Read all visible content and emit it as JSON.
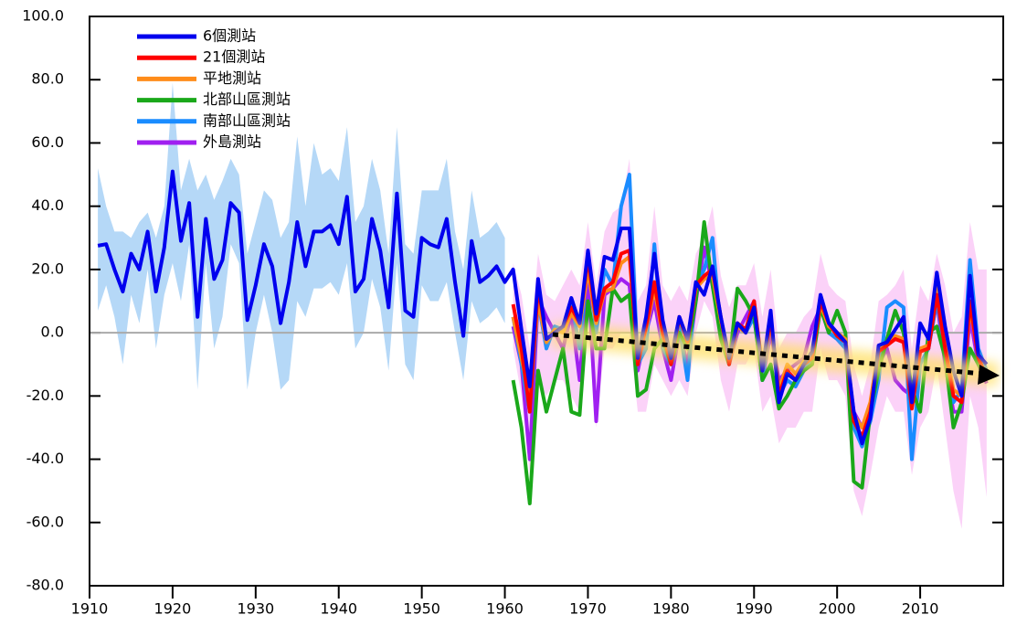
{
  "chart_data": {
    "type": "line",
    "x": [
      1911,
      1912,
      1913,
      1914,
      1915,
      1916,
      1917,
      1918,
      1919,
      1920,
      1921,
      1922,
      1923,
      1924,
      1925,
      1926,
      1927,
      1928,
      1929,
      1930,
      1931,
      1932,
      1933,
      1934,
      1935,
      1936,
      1937,
      1938,
      1939,
      1940,
      1941,
      1942,
      1943,
      1944,
      1945,
      1946,
      1947,
      1948,
      1949,
      1950,
      1951,
      1952,
      1953,
      1954,
      1955,
      1956,
      1957,
      1958,
      1959,
      1960,
      1961,
      1962,
      1963,
      1964,
      1965,
      1966,
      1967,
      1968,
      1969,
      1970,
      1971,
      1972,
      1973,
      1974,
      1975,
      1976,
      1977,
      1978,
      1979,
      1980,
      1981,
      1982,
      1983,
      1984,
      1985,
      1986,
      1987,
      1988,
      1989,
      1990,
      1991,
      1992,
      1993,
      1994,
      1995,
      1996,
      1997,
      1998,
      1999,
      2000,
      2001,
      2002,
      2003,
      2004,
      2005,
      2006,
      2007,
      2008,
      2009,
      2010,
      2011,
      2012,
      2013,
      2014,
      2015,
      2016,
      2017,
      2018
    ],
    "xlim": [
      1910,
      2020
    ],
    "xticks": [
      1910,
      1920,
      1930,
      1940,
      1950,
      1960,
      1970,
      1980,
      1990,
      2000,
      2010
    ],
    "ylim": [
      -80,
      100
    ],
    "yticks": [
      {
        "value": -80,
        "label": "-80.0"
      },
      {
        "value": -60,
        "label": "-60.0"
      },
      {
        "value": -40,
        "label": "-40.0"
      },
      {
        "value": -20,
        "label": "-20.0"
      },
      {
        "value": 0,
        "label": "0.0"
      },
      {
        "value": 20,
        "label": "20.0"
      },
      {
        "value": 40,
        "label": "40.0"
      },
      {
        "value": 60,
        "label": "60.0"
      },
      {
        "value": 80,
        "label": "80.0"
      },
      {
        "value": 100,
        "label": "100.0"
      }
    ],
    "legend": "upper left",
    "bands": [
      {
        "color": "#b5d8f7",
        "upper": [
          52,
          40,
          32,
          32,
          30,
          35,
          38,
          30,
          40,
          79,
          45,
          55,
          45,
          50,
          42,
          48,
          55,
          50,
          25,
          35,
          45,
          42,
          30,
          35,
          62,
          40,
          60,
          50,
          52,
          48,
          65,
          35,
          40,
          55,
          45,
          25,
          65,
          28,
          25,
          45,
          45,
          45,
          55,
          32,
          20,
          45,
          30,
          32,
          35,
          30,
          null,
          null,
          null,
          null,
          null,
          null,
          null,
          null,
          null,
          null,
          null,
          null,
          null,
          null,
          null,
          null,
          null,
          null,
          null,
          null,
          null,
          null,
          null,
          null,
          null,
          null,
          null,
          null,
          null,
          null,
          null,
          null,
          null,
          null,
          null,
          null,
          null,
          null,
          null,
          null,
          null,
          null,
          null,
          null,
          null,
          null,
          null,
          null,
          null,
          null,
          null,
          null,
          null,
          null,
          null,
          null,
          null,
          null
        ],
        "lower": [
          7,
          15,
          5,
          -10,
          12,
          3,
          20,
          -5,
          12,
          22,
          10,
          28,
          -18,
          22,
          -5,
          5,
          28,
          22,
          -18,
          0,
          12,
          0,
          -18,
          -15,
          10,
          5,
          14,
          14,
          16,
          12,
          22,
          -5,
          0,
          17,
          8,
          -12,
          22,
          -10,
          -15,
          15,
          10,
          10,
          16,
          0,
          -15,
          10,
          3,
          5,
          8,
          3,
          null,
          null,
          null,
          null,
          null,
          null,
          null,
          null,
          null,
          null,
          null,
          null,
          null,
          null,
          null,
          null,
          null,
          null,
          null,
          null,
          null,
          null,
          null,
          null,
          null,
          null,
          null,
          null,
          null,
          null,
          null,
          null,
          null,
          null,
          null,
          null,
          null,
          null,
          null,
          null,
          null,
          null,
          null,
          null,
          null,
          null,
          null,
          null,
          null,
          null,
          null,
          null,
          null,
          null,
          null,
          null,
          null,
          null
        ]
      },
      {
        "color": "#fbd2f8",
        "upper": [
          null,
          null,
          null,
          null,
          null,
          null,
          null,
          null,
          null,
          null,
          null,
          null,
          null,
          null,
          null,
          null,
          null,
          null,
          null,
          null,
          null,
          null,
          null,
          null,
          null,
          null,
          null,
          null,
          null,
          null,
          null,
          null,
          null,
          null,
          null,
          null,
          null,
          null,
          null,
          null,
          null,
          null,
          null,
          null,
          null,
          null,
          null,
          null,
          null,
          null,
          22,
          12,
          -5,
          25,
          12,
          10,
          15,
          20,
          15,
          35,
          15,
          32,
          38,
          40,
          55,
          10,
          15,
          40,
          15,
          10,
          15,
          10,
          25,
          30,
          40,
          18,
          8,
          15,
          15,
          22,
          5,
          20,
          -5,
          0,
          0,
          5,
          8,
          25,
          15,
          12,
          10,
          -10,
          -20,
          -10,
          10,
          12,
          15,
          20,
          -5,
          15,
          10,
          25,
          15,
          0,
          5,
          35,
          20,
          20
        ],
        "lower": [
          null,
          null,
          null,
          null,
          null,
          null,
          null,
          null,
          null,
          null,
          null,
          null,
          null,
          null,
          null,
          null,
          null,
          null,
          null,
          null,
          null,
          null,
          null,
          null,
          null,
          null,
          null,
          null,
          null,
          null,
          null,
          null,
          null,
          null,
          null,
          null,
          null,
          null,
          null,
          null,
          null,
          null,
          null,
          null,
          null,
          null,
          null,
          null,
          null,
          null,
          -5,
          -20,
          -45,
          -15,
          -20,
          -15,
          -15,
          -20,
          -25,
          10,
          -30,
          -5,
          -5,
          0,
          0,
          -25,
          -25,
          -10,
          -15,
          -20,
          -15,
          -20,
          0,
          10,
          5,
          -15,
          -25,
          -10,
          -10,
          -5,
          -25,
          -20,
          -35,
          -30,
          -30,
          -25,
          -25,
          -5,
          -15,
          -15,
          -20,
          -50,
          -58,
          -45,
          -30,
          -20,
          -25,
          -25,
          -45,
          -30,
          -25,
          -10,
          -30,
          -50,
          -62,
          -20,
          -30,
          -52
        ]
      }
    ],
    "series": [
      {
        "name": "6個測站",
        "color": "#0000ee",
        "values": [
          27.5,
          28,
          20,
          13,
          25,
          20,
          32,
          13,
          27,
          51,
          29,
          41,
          5,
          36,
          17,
          23,
          41,
          38,
          4,
          15,
          28,
          21,
          3,
          16,
          35,
          21,
          32,
          32,
          34,
          28,
          43,
          13,
          17,
          36,
          26,
          8,
          44,
          7,
          5,
          30,
          28,
          27,
          36,
          16,
          -1,
          29,
          16,
          18,
          21,
          16,
          20,
          1,
          -17,
          17,
          -2,
          0,
          2,
          11,
          3,
          26,
          6,
          24,
          23,
          33,
          33,
          -8,
          5,
          25,
          4,
          -8,
          5,
          -2,
          16,
          12,
          21,
          5,
          -8,
          3,
          0,
          8,
          -12,
          7,
          -22,
          -13,
          -15,
          -10,
          -6,
          12,
          3,
          0,
          -3,
          -25,
          -35,
          -27,
          -4,
          -3,
          1,
          5,
          -22,
          3,
          -2,
          19,
          2,
          -12,
          -20,
          18,
          -7,
          -10
        ]
      },
      {
        "name": "21個測站",
        "color": "#ff0000",
        "values": [
          null,
          null,
          null,
          null,
          null,
          null,
          null,
          null,
          null,
          null,
          null,
          null,
          null,
          null,
          null,
          null,
          null,
          null,
          null,
          null,
          null,
          null,
          null,
          null,
          null,
          null,
          null,
          null,
          null,
          null,
          null,
          null,
          null,
          null,
          null,
          null,
          null,
          null,
          null,
          null,
          null,
          null,
          null,
          null,
          null,
          null,
          null,
          null,
          null,
          null,
          9,
          -5,
          -25,
          15,
          -2,
          0,
          2,
          8,
          3,
          24,
          4,
          14,
          16,
          25,
          26,
          -10,
          2,
          16,
          0,
          -10,
          5,
          -3,
          15,
          18,
          20,
          5,
          -10,
          3,
          1,
          10,
          -12,
          5,
          -20,
          -12,
          -15,
          -10,
          -8,
          10,
          3,
          -1,
          -3,
          -28,
          -33,
          -25,
          -6,
          -4,
          -2,
          -3,
          -24,
          -6,
          -5,
          12,
          -5,
          -20,
          -22,
          10,
          -8,
          -14
        ]
      },
      {
        "name": "平地測站",
        "color": "#ff8c1a",
        "values": [
          null,
          null,
          null,
          null,
          null,
          null,
          null,
          null,
          null,
          null,
          null,
          null,
          null,
          null,
          null,
          null,
          null,
          null,
          null,
          null,
          null,
          null,
          null,
          null,
          null,
          null,
          null,
          null,
          null,
          null,
          null,
          null,
          null,
          null,
          null,
          null,
          null,
          null,
          null,
          null,
          null,
          null,
          null,
          null,
          null,
          null,
          null,
          null,
          null,
          null,
          5,
          -8,
          -20,
          10,
          -3,
          1,
          0,
          6,
          2,
          20,
          3,
          13,
          14,
          22,
          24,
          -8,
          1,
          14,
          -1,
          -8,
          4,
          -2,
          14,
          17,
          18,
          4,
          -8,
          2,
          0,
          8,
          -10,
          3,
          -18,
          -10,
          -13,
          -9,
          -7,
          9,
          2,
          0,
          -2,
          -26,
          -30,
          -22,
          -5,
          -3,
          -1,
          -2,
          -20,
          -5,
          -4,
          15,
          -4,
          -18,
          -20,
          8,
          -7,
          -15
        ]
      },
      {
        "name": "北部山區測站",
        "color": "#1aa81a",
        "values": [
          null,
          null,
          null,
          null,
          null,
          null,
          null,
          null,
          null,
          null,
          null,
          null,
          null,
          null,
          null,
          null,
          null,
          null,
          null,
          null,
          null,
          null,
          null,
          null,
          null,
          null,
          null,
          null,
          null,
          null,
          null,
          null,
          null,
          null,
          null,
          null,
          null,
          null,
          null,
          null,
          null,
          null,
          null,
          null,
          null,
          null,
          null,
          null,
          null,
          null,
          -15,
          -30,
          -54,
          -12,
          -25,
          -15,
          -5,
          -25,
          -26,
          10,
          -5,
          -5,
          14,
          10,
          12,
          -20,
          -18,
          -5,
          -2,
          -10,
          0,
          -5,
          10,
          35,
          15,
          -2,
          -10,
          14,
          10,
          5,
          -15,
          -10,
          -24,
          -20,
          -15,
          -12,
          -10,
          8,
          0,
          7,
          0,
          -47,
          -49,
          -25,
          -12,
          -2,
          7,
          0,
          -18,
          -25,
          0,
          2,
          -8,
          -30,
          -22,
          -5,
          -10,
          -15
        ]
      },
      {
        "name": "南部山區測站",
        "color": "#1a8cff",
        "values": [
          null,
          null,
          null,
          null,
          null,
          null,
          null,
          null,
          null,
          null,
          null,
          null,
          null,
          null,
          null,
          null,
          null,
          null,
          null,
          null,
          null,
          null,
          null,
          null,
          null,
          null,
          null,
          null,
          null,
          null,
          null,
          null,
          null,
          null,
          null,
          null,
          null,
          null,
          null,
          null,
          null,
          null,
          null,
          null,
          null,
          null,
          null,
          null,
          null,
          null,
          5,
          -10,
          -25,
          10,
          -5,
          2,
          1,
          10,
          -5,
          25,
          0,
          20,
          15,
          40,
          50,
          -10,
          -5,
          28,
          -5,
          -10,
          2,
          -15,
          15,
          20,
          30,
          0,
          -10,
          2,
          0,
          5,
          -15,
          5,
          -20,
          -15,
          -17,
          -12,
          -8,
          10,
          0,
          -2,
          -5,
          -30,
          -36,
          -28,
          -15,
          8,
          10,
          8,
          -40,
          -10,
          -5,
          10,
          -5,
          -22,
          -18,
          23,
          -5,
          -12
        ]
      },
      {
        "name": "外島測站",
        "color": "#a020f0",
        "values": [
          null,
          null,
          null,
          null,
          null,
          null,
          null,
          null,
          null,
          null,
          null,
          null,
          null,
          null,
          null,
          null,
          null,
          null,
          null,
          null,
          null,
          null,
          null,
          null,
          null,
          null,
          null,
          null,
          null,
          null,
          null,
          null,
          null,
          null,
          null,
          null,
          null,
          null,
          null,
          null,
          null,
          null,
          null,
          null,
          null,
          null,
          null,
          null,
          null,
          null,
          2,
          -10,
          -40,
          11,
          5,
          0,
          -5,
          6,
          -15,
          18,
          -28,
          12,
          14,
          17,
          15,
          -12,
          0,
          10,
          -5,
          -15,
          0,
          -10,
          10,
          27,
          15,
          0,
          -10,
          0,
          5,
          10,
          -15,
          0,
          -15,
          -12,
          -10,
          -8,
          2,
          8,
          0,
          -2,
          -5,
          -25,
          -30,
          -28,
          -10,
          -5,
          -15,
          -18,
          -20,
          -5,
          -5,
          10,
          -10,
          -25,
          -25,
          5,
          -10,
          -16
        ]
      }
    ]
  }
}
